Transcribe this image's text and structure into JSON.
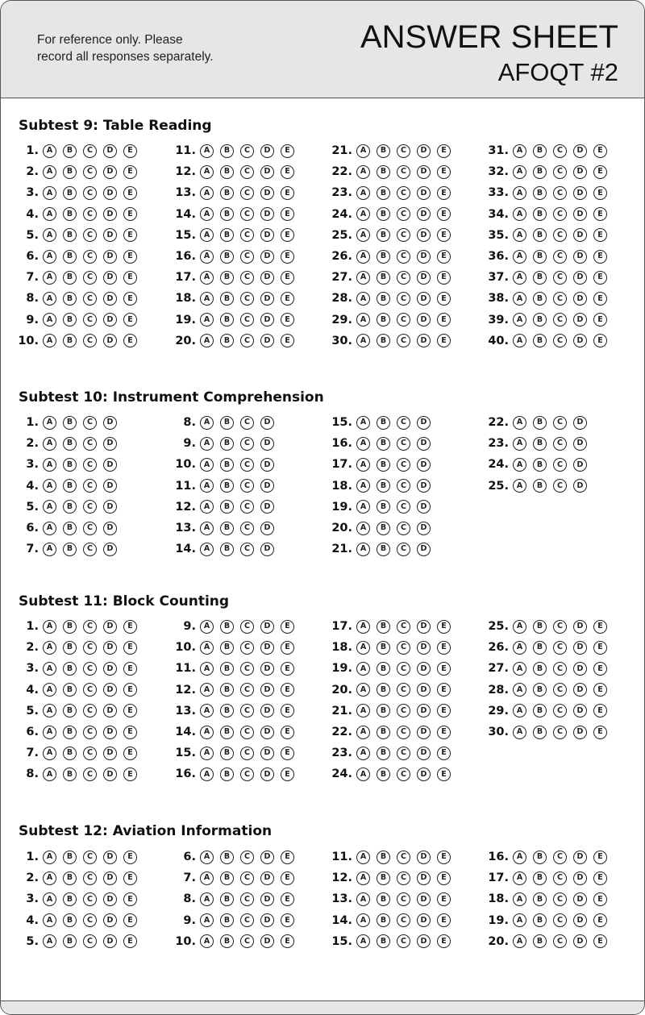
{
  "header": {
    "note": "For reference only. Please record all responses separately.",
    "title": "ANSWER SHEET",
    "subtitle": "AFOQT #2"
  },
  "sections": [
    {
      "title": "Subtest 9: Table Reading",
      "count": 40,
      "per_column": 10,
      "options": [
        "A",
        "B",
        "C",
        "D",
        "E"
      ]
    },
    {
      "title": "Subtest 10: Instrument Comprehension",
      "count": 25,
      "per_column": 7,
      "options": [
        "A",
        "B",
        "C",
        "D"
      ]
    },
    {
      "title": "Subtest 11: Block Counting",
      "count": 30,
      "per_column": 8,
      "options": [
        "A",
        "B",
        "C",
        "D",
        "E"
      ]
    },
    {
      "title": "Subtest 12: Aviation Information",
      "count": 20,
      "per_column": 5,
      "options": [
        "A",
        "B",
        "C",
        "D",
        "E"
      ]
    }
  ]
}
